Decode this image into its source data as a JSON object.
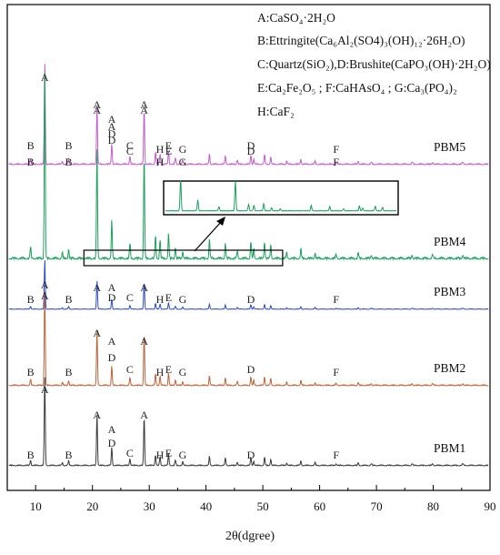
{
  "chart_data": {
    "type": "line",
    "xlabel": "2θ(dgree)",
    "ylabel": "",
    "xlim": [
      5,
      90
    ],
    "xticks": [
      10,
      20,
      30,
      40,
      50,
      60,
      70,
      80,
      90
    ],
    "legend_lines": [
      "A:CaSO₄·2H₂O",
      "B:Ettringite(Ca₆Al₂(SO4)₃(OH)₁₂·26H₂O)",
      "C:Quartz(SiO₂),D:Brushite(CaPO₃(OH)·2H₂O)",
      "E:Ca₂Fe₂O₅ ; F:CaHAsO₄ ; G:Ca₃(PO₄)₂",
      "H:CaF₂"
    ],
    "series": [
      {
        "name": "PBM5",
        "color": "#c35dc9",
        "labels": [
          {
            "text": "A",
            "x": 11.6,
            "row": 0
          },
          {
            "text": "A",
            "x": 20.8,
            "row": 1
          },
          {
            "text": "A",
            "x": 23.4,
            "row": 2
          },
          {
            "text": "D",
            "x": 23.4,
            "row": 3
          },
          {
            "text": "A",
            "x": 29.1,
            "row": 1
          },
          {
            "text": "C",
            "x": 26.6,
            "row": 4
          },
          {
            "text": "B",
            "x": 9.1,
            "row": 4
          },
          {
            "text": "B",
            "x": 15.8,
            "row": 4
          },
          {
            "text": "H",
            "x": 31.9,
            "row": 5
          },
          {
            "text": "E",
            "x": 33.4,
            "row": 4
          },
          {
            "text": "G",
            "x": 35.9,
            "row": 5
          },
          {
            "text": "D",
            "x": 47.9,
            "row": 4
          },
          {
            "text": "F",
            "x": 62.9,
            "row": 5
          }
        ]
      },
      {
        "name": "PBM4",
        "color": "#1d9e5e",
        "labels": [
          {
            "text": "A",
            "x": 20.8,
            "row": 1
          },
          {
            "text": "A",
            "x": 23.4,
            "row": 2
          },
          {
            "text": "D",
            "x": 23.4,
            "row": 3
          },
          {
            "text": "A",
            "x": 29.1,
            "row": 1
          },
          {
            "text": "C",
            "x": 26.6,
            "row": 4
          },
          {
            "text": "B",
            "x": 9.1,
            "row": 5
          },
          {
            "text": "B",
            "x": 15.8,
            "row": 5
          },
          {
            "text": "H",
            "x": 31.9,
            "row": 5
          },
          {
            "text": "E",
            "x": 33.4,
            "row": 4
          },
          {
            "text": "G",
            "x": 35.9,
            "row": 5
          },
          {
            "text": "D",
            "x": 47.9,
            "row": 4
          },
          {
            "text": "F",
            "x": 62.9,
            "row": 5
          }
        ]
      },
      {
        "name": "PBM3",
        "color": "#2e4fc7",
        "labels": [
          {
            "text": "A",
            "x": 11.6,
            "row": 1
          },
          {
            "text": "A",
            "x": 20.8,
            "row": 2
          },
          {
            "text": "A",
            "x": 23.4,
            "row": 2
          },
          {
            "text": "D",
            "x": 23.4,
            "row": 3
          },
          {
            "text": "A",
            "x": 29.1,
            "row": 2
          },
          {
            "text": "C",
            "x": 26.6,
            "row": 3
          },
          {
            "text": "B",
            "x": 9.1,
            "row": 5
          },
          {
            "text": "B",
            "x": 15.8,
            "row": 5
          },
          {
            "text": "H",
            "x": 31.9,
            "row": 5
          },
          {
            "text": "E",
            "x": 33.4,
            "row": 4
          },
          {
            "text": "G",
            "x": 35.9,
            "row": 5
          },
          {
            "text": "D",
            "x": 47.9,
            "row": 5
          },
          {
            "text": "F",
            "x": 62.9,
            "row": 5
          }
        ]
      },
      {
        "name": "PBM2",
        "color": "#b8643c",
        "labels": [
          {
            "text": "A",
            "x": 11.6,
            "row": 0
          },
          {
            "text": "A",
            "x": 20.8,
            "row": 1
          },
          {
            "text": "A",
            "x": 23.4,
            "row": 2
          },
          {
            "text": "D",
            "x": 23.4,
            "row": 3
          },
          {
            "text": "A",
            "x": 29.1,
            "row": 2
          },
          {
            "text": "C",
            "x": 26.6,
            "row": 4
          },
          {
            "text": "B",
            "x": 9.1,
            "row": 5
          },
          {
            "text": "B",
            "x": 15.8,
            "row": 5
          },
          {
            "text": "H",
            "x": 31.9,
            "row": 5
          },
          {
            "text": "E",
            "x": 33.4,
            "row": 4
          },
          {
            "text": "G",
            "x": 35.9,
            "row": 5
          },
          {
            "text": "D",
            "x": 47.9,
            "row": 4
          },
          {
            "text": "F",
            "x": 62.9,
            "row": 5
          }
        ]
      },
      {
        "name": "PBM1",
        "color": "#3a3a3a",
        "labels": [
          {
            "text": "A",
            "x": 11.6,
            "row": 0
          },
          {
            "text": "A",
            "x": 20.8,
            "row": 1
          },
          {
            "text": "A",
            "x": 23.4,
            "row": 2
          },
          {
            "text": "D",
            "x": 23.4,
            "row": 3
          },
          {
            "text": "A",
            "x": 29.1,
            "row": 1
          },
          {
            "text": "C",
            "x": 26.6,
            "row": 4
          },
          {
            "text": "B",
            "x": 9.1,
            "row": 5
          },
          {
            "text": "B",
            "x": 15.8,
            "row": 5
          },
          {
            "text": "H",
            "x": 31.9,
            "row": 5
          },
          {
            "text": "E",
            "x": 33.4,
            "row": 4
          },
          {
            "text": "G",
            "x": 35.9,
            "row": 5
          },
          {
            "text": "D",
            "x": 47.9,
            "row": 5
          },
          {
            "text": "F",
            "x": 62.9,
            "row": 5
          }
        ]
      }
    ],
    "peaks": [
      {
        "x": 9.1,
        "h": 0.06
      },
      {
        "x": 11.6,
        "h": 1.0
      },
      {
        "x": 14.7,
        "h": 0.03
      },
      {
        "x": 15.8,
        "h": 0.05
      },
      {
        "x": 20.8,
        "h": 0.58
      },
      {
        "x": 23.4,
        "h": 0.2
      },
      {
        "x": 26.6,
        "h": 0.08
      },
      {
        "x": 29.1,
        "h": 0.55
      },
      {
        "x": 31.1,
        "h": 0.12
      },
      {
        "x": 31.9,
        "h": 0.1
      },
      {
        "x": 33.4,
        "h": 0.13
      },
      {
        "x": 34.6,
        "h": 0.06
      },
      {
        "x": 35.9,
        "h": 0.04
      },
      {
        "x": 40.6,
        "h": 0.1
      },
      {
        "x": 43.4,
        "h": 0.08
      },
      {
        "x": 45.5,
        "h": 0.04
      },
      {
        "x": 47.9,
        "h": 0.09
      },
      {
        "x": 48.4,
        "h": 0.05
      },
      {
        "x": 50.3,
        "h": 0.09
      },
      {
        "x": 51.4,
        "h": 0.07
      },
      {
        "x": 54.2,
        "h": 0.03
      },
      {
        "x": 56.7,
        "h": 0.05
      },
      {
        "x": 59.2,
        "h": 0.03
      },
      {
        "x": 62.9,
        "h": 0.02
      },
      {
        "x": 66.8,
        "h": 0.03
      },
      {
        "x": 69.1,
        "h": 0.02
      },
      {
        "x": 76.3,
        "h": 0.02
      },
      {
        "x": 79.9,
        "h": 0.02
      },
      {
        "x": 85.2,
        "h": 0.02
      }
    ],
    "inset_source_xrange": [
      18.5,
      53.5
    ],
    "inset_source_series": "PBM4"
  }
}
